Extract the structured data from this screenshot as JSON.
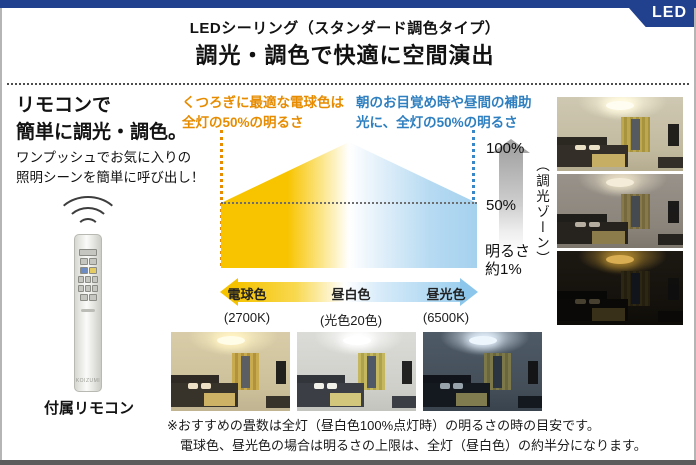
{
  "header": {
    "led_badge": "LED",
    "subtitle": "LEDシーリング（スタンダード調色タイプ）",
    "title": "調光・調色で快適に空間演出"
  },
  "left_panel": {
    "headline": [
      "リモコンで",
      "簡単に調光・調色。"
    ],
    "body": [
      "ワンプッシュでお気に入りの",
      "照明シーンを簡単に呼び出し！"
    ],
    "remote_brand": "KOIZUMI",
    "remote_caption": "付属リモコン"
  },
  "diagram": {
    "annotation_warm": [
      "くつろぎに最適な電球色は",
      "全灯の50%の明るさ"
    ],
    "annotation_cool": [
      "朝のお目覚め時や昼間の補助",
      "光に、全灯の50%の明るさ"
    ],
    "axis_labels": [
      {
        "name": "電球色",
        "kelvin": "(2700K)"
      },
      {
        "name": "昼白色",
        "kelvin": "(光色20色)"
      },
      {
        "name": "昼光色",
        "kelvin": "(6500K)"
      }
    ],
    "scale": {
      "max": "100%",
      "mid": "50%",
      "min": [
        "明るさ",
        "約1%"
      ],
      "zone_label": "（調光ゾーン）"
    }
  },
  "footnote": [
    "※おすすめの畳数は全灯（昼白色100%点灯時）の明るさの時の目安です。",
    "電球色、昼光色の場合は明るさの上限は、全灯（昼白色）の約半分になります。"
  ],
  "colors": {
    "navy": "#21418e",
    "warm_yellow": "#f8c400",
    "cool_blue": "#a5d1ee",
    "orange_text": "#e78c00",
    "blue_text": "#2e7fc0"
  },
  "photos": {
    "right_column": [
      "寝室・全灯100%の明るさ",
      "寝室・50%の明るさ",
      "寝室・明るさ約1%"
    ],
    "bottom_row": [
      "電球色の寝室",
      "昼白色の寝室",
      "昼光色の寝室"
    ]
  },
  "chart_data": {
    "type": "area",
    "title": "調光・調色で快適に空間演出",
    "x": [
      "電球色 (2700K)",
      "昼白色 (光色20色)",
      "昼光色 (6500K)"
    ],
    "max_brightness_percent": [
      50,
      100,
      50
    ],
    "min_brightness_percent": 1,
    "ylabel": "調光ゾーン",
    "yticks": [
      "100%",
      "50%",
      "明るさ約1%"
    ],
    "annotations": [
      "くつろぎに最適な電球色は全灯の50%の明るさ",
      "朝のお目覚め時や昼間の補助光に、全灯の50%の明るさ"
    ],
    "legend_position": "none",
    "grid": false
  }
}
